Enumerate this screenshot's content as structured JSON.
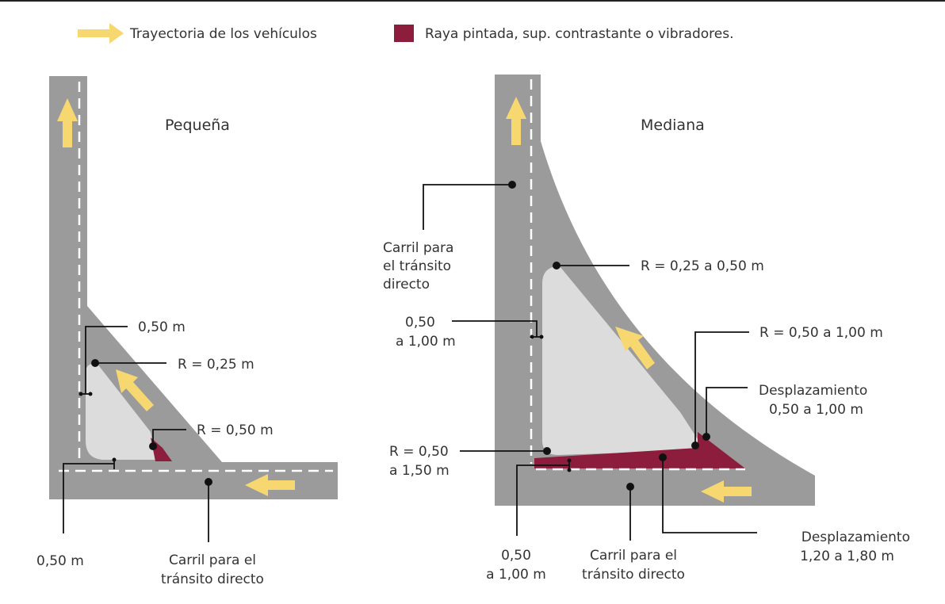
{
  "legend": {
    "trajectory": "Trayectoria de los vehículos",
    "marking": "Raya pintada, sup. contrastante o vibradores.",
    "trajectory_color": "#f7d870",
    "marking_color": "#8c1d3d"
  },
  "small": {
    "title": "Pequeña",
    "offset_050": "0,50 m",
    "radius_025": "R = 0,25 m",
    "radius_050": "R = 0,50 m",
    "bottom_offset": "0,50 m",
    "lane_line1": "Carril para el",
    "lane_line2": "tránsito directo"
  },
  "medium": {
    "title": "Mediana",
    "lane_left_line1": "Carril para",
    "lane_left_line2": "el tránsito",
    "lane_left_line3": "directo",
    "radius_top": "R = 0,25 a 0,50 m",
    "offset_left_line1": "0,50",
    "offset_left_line2": "a 1,00 m",
    "radius_right": "R = 0,50 a 1,00 m",
    "displacement_right_line1": "Desplazamiento",
    "displacement_right_line2": "0,50 a 1,00 m",
    "radius_bottom_line1": "R = 0,50",
    "radius_bottom_line2": "a 1,50 m",
    "offset_bottom_line1": "0,50",
    "offset_bottom_line2": "a 1,00 m",
    "lane_bottom_line1": "Carril para el",
    "lane_bottom_line2": "tránsito directo",
    "displacement_bottom_line1": "Desplazamiento",
    "displacement_bottom_line2": "1,20 a 1,80 m"
  },
  "colors": {
    "road": "#9b9b9b",
    "island": "#dcdcdc"
  }
}
